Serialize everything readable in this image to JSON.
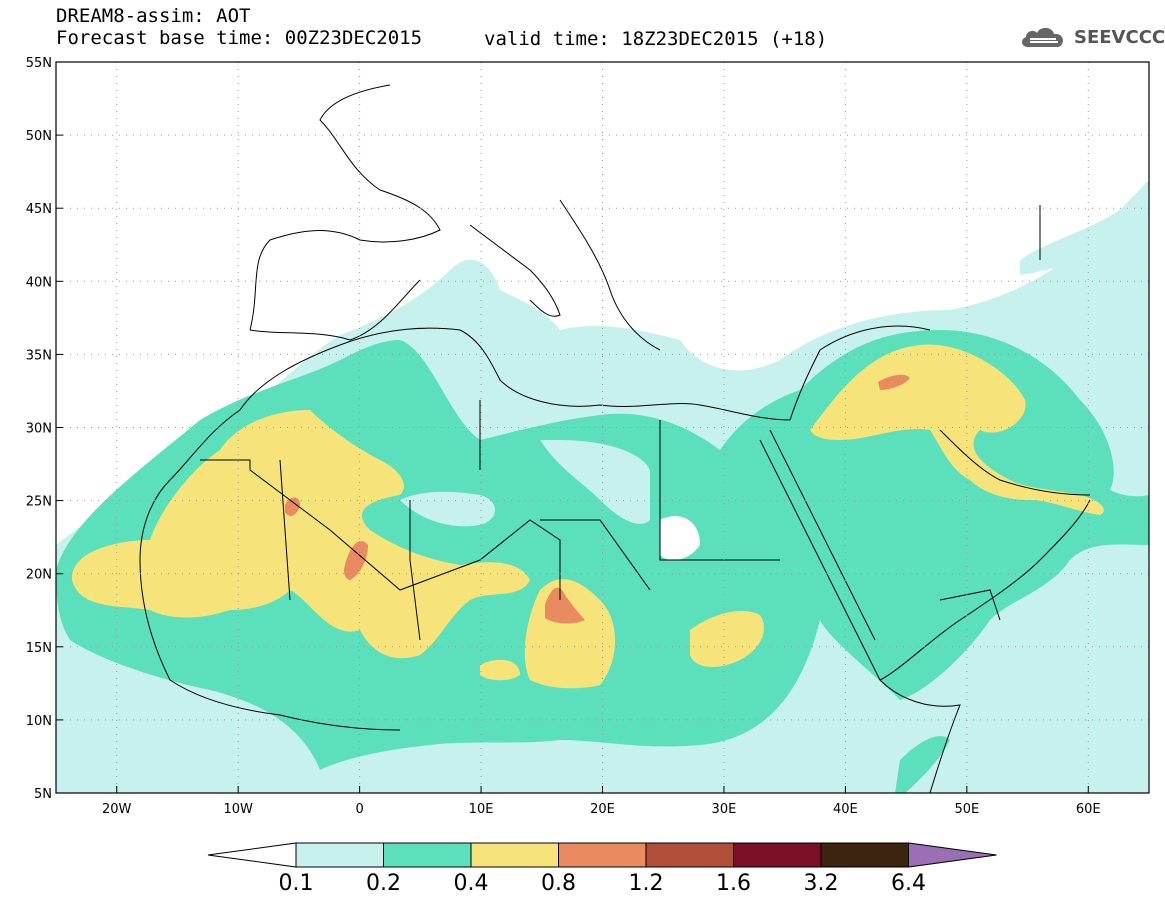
{
  "header": {
    "line1": "DREAM8-assim: AOT",
    "line2": "Forecast base time: 00Z23DEC2015",
    "valid": "valid time: 18Z23DEC2015 (+18)",
    "logo_text": "SEEVCCC"
  },
  "map": {
    "lat_labels": [
      "55N",
      "50N",
      "45N",
      "40N",
      "35N",
      "30N",
      "25N",
      "20N",
      "15N",
      "10N",
      "5N"
    ],
    "lon_labels": [
      "20W",
      "10W",
      "0",
      "10E",
      "20E",
      "30E",
      "40E",
      "50E",
      "60E"
    ],
    "lat_range": [
      5,
      55
    ],
    "lon_range": [
      -25,
      65
    ]
  },
  "colorbar": {
    "labels": [
      "0.1",
      "0.2",
      "0.4",
      "0.8",
      "1.2",
      "1.6",
      "3.2",
      "6.4"
    ],
    "colors": [
      "#c6f1ec",
      "#5ce0bb",
      "#f6e47a",
      "#e98a60",
      "#b04e3a",
      "#7a0f25",
      "#3d2410",
      "#9b6fb3"
    ]
  },
  "colors": {
    "c01": "#c6f1ec",
    "c02": "#5ce0bb",
    "c04": "#f6e47a",
    "c08": "#e98a60"
  }
}
